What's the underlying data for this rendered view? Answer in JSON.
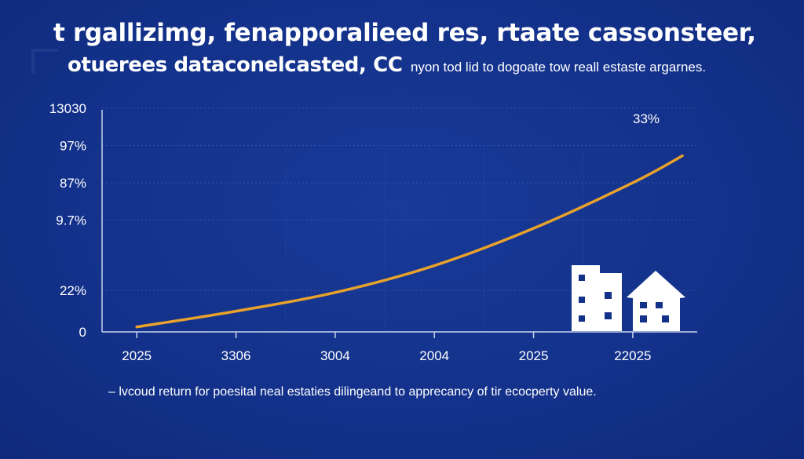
{
  "title": "t rgallizimg, fenapporalieed res, rtaate cassonsteer,",
  "subtitle_bold": "otuerees dataconelcasted, CC",
  "subtitle_small": "nyon tod lid to dogoate tow reall estaste argarnes.",
  "caption": "– lvcoud return for poesital neal estaties dilingeand to apprecancy of tir ecocperty value.",
  "colors": {
    "background": "#14318a",
    "line": "#e8a22c",
    "grid": "#3452a6",
    "buildings": "#ffffff"
  },
  "icons": [
    "apartment-building-icon",
    "house-icon"
  ],
  "chart_data": {
    "type": "line",
    "y_tick_labels": [
      "0",
      "22%",
      "9.7%",
      "87%",
      "97%",
      "13030"
    ],
    "x_tick_labels": [
      "2025",
      "3306",
      "3004",
      "2004",
      "2025",
      "22025"
    ],
    "annotation": "33%",
    "grid": true,
    "series": [
      {
        "x": [
          0,
          1,
          2,
          3,
          4,
          5,
          5.5
        ],
        "y": [
          0.12,
          0.5,
          0.95,
          1.6,
          2.5,
          3.6,
          4.25
        ]
      }
    ],
    "xlim": [
      -0.35,
      5.65
    ],
    "ylim": [
      0,
      5.55
    ]
  }
}
